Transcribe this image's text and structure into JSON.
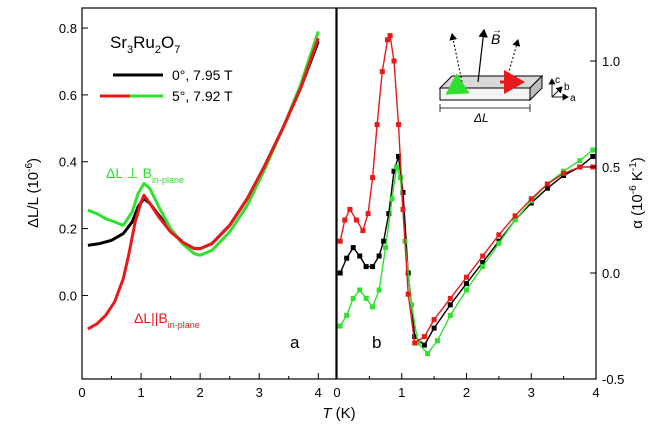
{
  "chart_data": [
    {
      "panel": "a",
      "type": "line",
      "title": "",
      "xlabel": "T (K)",
      "ylabel": "ΔL/L (10^-6)",
      "xlim": [
        0,
        4.3
      ],
      "ylim": [
        -0.25,
        0.86
      ],
      "xticks": [
        "0",
        "1",
        "2",
        "3",
        "4"
      ],
      "yticks": [
        "0.0",
        "0.2",
        "0.4",
        "0.6",
        "0.8"
      ],
      "panel_label": "a",
      "legend": {
        "placement": "top-left",
        "title": {
          "text": "Sr3Ru2O7",
          "parts": [
            "Sr",
            "3",
            "Ru",
            "2",
            "O",
            "7"
          ]
        },
        "entries": [
          {
            "label": "0°, 7.95 T",
            "colors": [
              "#000000"
            ]
          },
          {
            "label": "5°, 7.92 T",
            "colors": [
              "#e8191b",
              "#2fe02f"
            ]
          }
        ]
      },
      "annotations": [
        {
          "text": "ΔL ⊥ B",
          "sub": "in-plane",
          "color": "#2fe02f",
          "x": 0.9,
          "y": 0.37
        },
        {
          "text": "ΔL||B",
          "sub": "in-plane",
          "color": "#e8191b",
          "x": 0.78,
          "y": -0.095
        }
      ],
      "series": [
        {
          "label": "0°, 7.95 T",
          "color": "#000000",
          "x": [
            0.1,
            0.3,
            0.5,
            0.7,
            0.85,
            0.95,
            1.05,
            1.15,
            1.3,
            1.5,
            1.7,
            1.9,
            2.0,
            2.2,
            2.5,
            2.8,
            3.1,
            3.4,
            3.7,
            4.0
          ],
          "y": [
            0.15,
            0.155,
            0.165,
            0.185,
            0.22,
            0.265,
            0.29,
            0.275,
            0.24,
            0.195,
            0.16,
            0.14,
            0.14,
            0.155,
            0.21,
            0.29,
            0.39,
            0.5,
            0.62,
            0.76
          ]
        },
        {
          "label": "5°, 7.92 T (ΔL ⊥ B in-plane)",
          "color": "#2fe02f",
          "x": [
            0.1,
            0.25,
            0.4,
            0.55,
            0.7,
            0.85,
            0.95,
            1.05,
            1.15,
            1.3,
            1.5,
            1.7,
            1.9,
            2.0,
            2.2,
            2.5,
            2.8,
            3.1,
            3.4,
            3.7,
            4.0
          ],
          "y": [
            0.255,
            0.245,
            0.23,
            0.22,
            0.21,
            0.25,
            0.305,
            0.335,
            0.32,
            0.265,
            0.2,
            0.155,
            0.125,
            0.12,
            0.135,
            0.19,
            0.27,
            0.38,
            0.5,
            0.63,
            0.79
          ]
        },
        {
          "label": "5°, 7.92 T (ΔL||B in-plane)",
          "color": "#e8191b",
          "x": [
            0.1,
            0.25,
            0.4,
            0.55,
            0.7,
            0.8,
            0.9,
            1.0,
            1.05,
            1.15,
            1.3,
            1.5,
            1.7,
            1.9,
            2.0,
            2.2,
            2.5,
            2.8,
            3.1,
            3.4,
            3.7,
            4.0
          ],
          "y": [
            -0.1,
            -0.085,
            -0.06,
            -0.02,
            0.05,
            0.13,
            0.22,
            0.28,
            0.3,
            0.275,
            0.235,
            0.19,
            0.16,
            0.14,
            0.14,
            0.155,
            0.21,
            0.29,
            0.39,
            0.5,
            0.62,
            0.77
          ]
        }
      ]
    },
    {
      "panel": "b",
      "type": "line",
      "title": "",
      "xlabel": "T (K)",
      "ylabel": "α (10^-6 K^-1)",
      "xlim": [
        0,
        4
      ],
      "ylim": [
        -0.5,
        1.25
      ],
      "xticks": [
        "0",
        "1",
        "2",
        "3",
        "4"
      ],
      "yticks": [
        "-0.5",
        "0.0",
        "0.5",
        "1.0"
      ],
      "panel_label": "b",
      "series": [
        {
          "label": "0°, 7.95 T",
          "color": "#000000",
          "x": [
            0.05,
            0.15,
            0.25,
            0.35,
            0.45,
            0.55,
            0.65,
            0.72,
            0.8,
            0.88,
            0.95,
            1.02,
            1.1,
            1.2,
            1.35,
            1.5,
            1.75,
            2.0,
            2.25,
            2.5,
            2.75,
            3.0,
            3.25,
            3.5,
            3.75,
            3.95
          ],
          "y": [
            0.0,
            0.07,
            0.12,
            0.08,
            0.03,
            0.03,
            0.08,
            0.15,
            0.28,
            0.48,
            0.55,
            0.38,
            0.0,
            -0.3,
            -0.34,
            -0.26,
            -0.15,
            -0.05,
            0.05,
            0.15,
            0.25,
            0.33,
            0.4,
            0.46,
            0.5,
            0.55
          ]
        },
        {
          "label": "5°, 7.92 T (ΔL ⊥ B in-plane)",
          "color": "#2fe02f",
          "x": [
            0.05,
            0.15,
            0.25,
            0.35,
            0.45,
            0.55,
            0.65,
            0.75,
            0.85,
            0.92,
            0.98,
            1.05,
            1.15,
            1.25,
            1.4,
            1.55,
            1.75,
            2.0,
            2.25,
            2.5,
            2.75,
            3.0,
            3.25,
            3.5,
            3.75,
            3.95
          ],
          "y": [
            -0.25,
            -0.2,
            -0.12,
            -0.08,
            -0.12,
            -0.16,
            -0.08,
            0.12,
            0.35,
            0.5,
            0.45,
            0.15,
            -0.15,
            -0.33,
            -0.38,
            -0.32,
            -0.2,
            -0.08,
            0.03,
            0.14,
            0.25,
            0.34,
            0.42,
            0.48,
            0.53,
            0.58
          ]
        },
        {
          "label": "5°, 7.92 T (ΔL||B in-plane)",
          "color": "#e8191b",
          "x": [
            0.05,
            0.12,
            0.2,
            0.3,
            0.4,
            0.48,
            0.55,
            0.62,
            0.7,
            0.78,
            0.82,
            0.88,
            0.95,
            1.02,
            1.1,
            1.2,
            1.35,
            1.5,
            1.75,
            2.0,
            2.25,
            2.5,
            2.75,
            3.0,
            3.25,
            3.5,
            3.75,
            3.95
          ],
          "y": [
            0.15,
            0.25,
            0.3,
            0.25,
            0.2,
            0.28,
            0.45,
            0.7,
            0.95,
            1.1,
            1.12,
            1.0,
            0.7,
            0.3,
            -0.1,
            -0.33,
            -0.3,
            -0.22,
            -0.12,
            -0.02,
            0.08,
            0.18,
            0.27,
            0.35,
            0.42,
            0.47,
            0.5,
            0.5
          ]
        }
      ],
      "inset": {
        "labels": {
          "field": "B",
          "length": "ΔL",
          "axis_c": "c",
          "axis_b": "b",
          "axis_a": "a"
        }
      }
    }
  ]
}
